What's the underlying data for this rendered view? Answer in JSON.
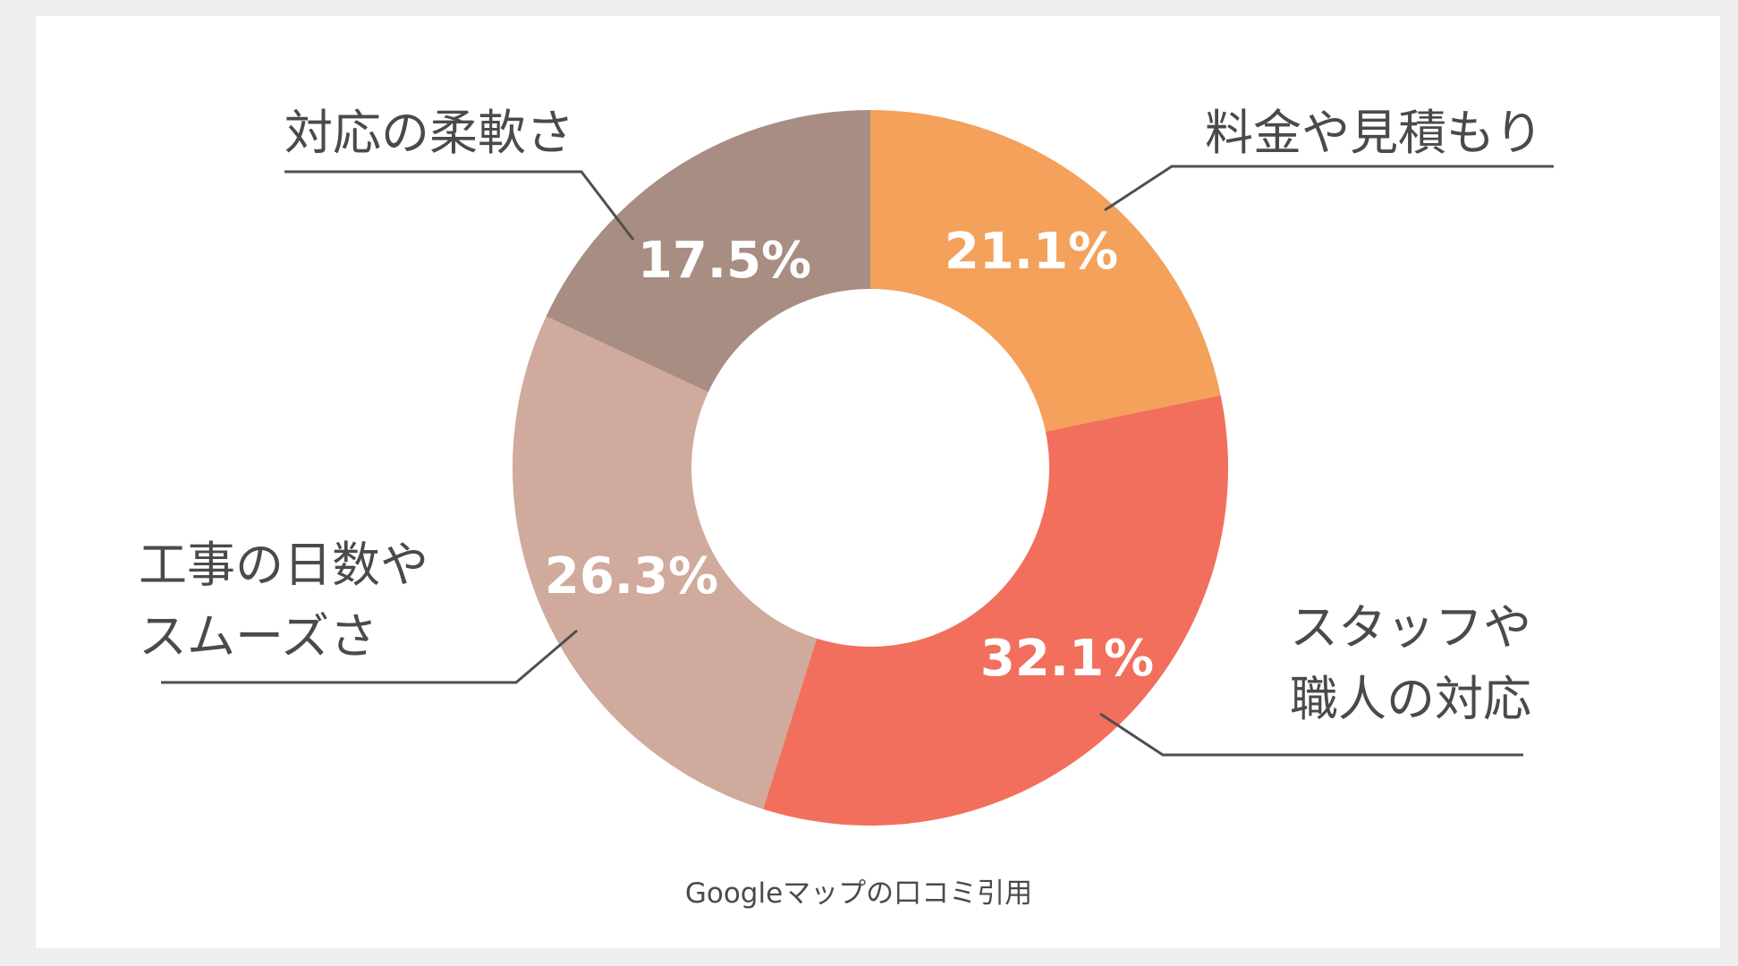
{
  "chart_data": {
    "type": "pie",
    "donut": true,
    "title": "",
    "source_note": "Googleマップの口コミ引用",
    "slices": [
      {
        "category": "料金や見積もり",
        "value": 21.1,
        "label": "21.1%",
        "color": "#f3a15b"
      },
      {
        "category": "スタッフや職人の対応",
        "value": 32.1,
        "label": "32.1%",
        "color": "#f26f5d"
      },
      {
        "category": "工事の日数やスムーズさ",
        "value": 26.3,
        "label": "26.3%",
        "color": "#d0aa9c"
      },
      {
        "category": "対応の柔軟さ",
        "value": 17.5,
        "label": "17.5%",
        "color": "#a88d82"
      }
    ],
    "category_label_lines": [
      [
        "料金や見積もり"
      ],
      [
        "スタッフや",
        "職人の対応"
      ],
      [
        "工事の日数や",
        "スムーズさ"
      ],
      [
        "対応の柔軟さ"
      ]
    ],
    "start_angle_deg": 0,
    "direction": "clockwise"
  }
}
